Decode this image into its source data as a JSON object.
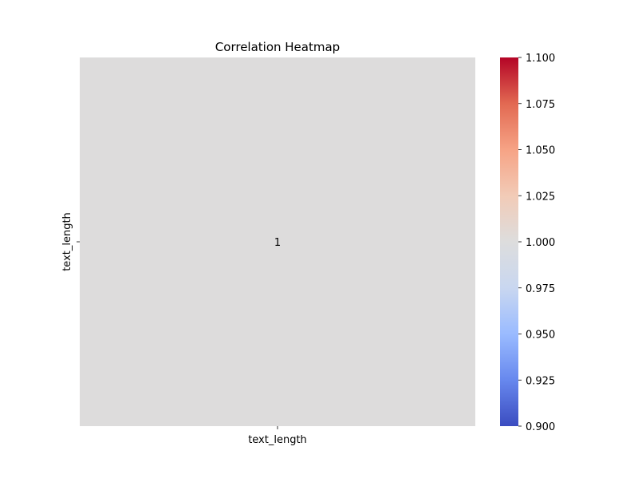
{
  "chart_data": {
    "type": "heatmap",
    "title": "Correlation Heatmap",
    "rows": [
      "text_length"
    ],
    "columns": [
      "text_length"
    ],
    "values": [
      [
        1
      ]
    ],
    "annotations": [
      [
        "1"
      ]
    ],
    "colormap": "coolwarm",
    "colorbar": {
      "min": 0.9,
      "max": 1.1,
      "ticks": [
        "0.900",
        "0.925",
        "0.950",
        "0.975",
        "1.000",
        "1.025",
        "1.050",
        "1.075",
        "1.100"
      ],
      "colors": [
        "#3b4cc0",
        "#6788ee",
        "#9abbff",
        "#c9d7f0",
        "#dddddd",
        "#f2cbb7",
        "#f6a385",
        "#e26952",
        "#b40426"
      ]
    },
    "cell_color": "#dddcdc"
  }
}
